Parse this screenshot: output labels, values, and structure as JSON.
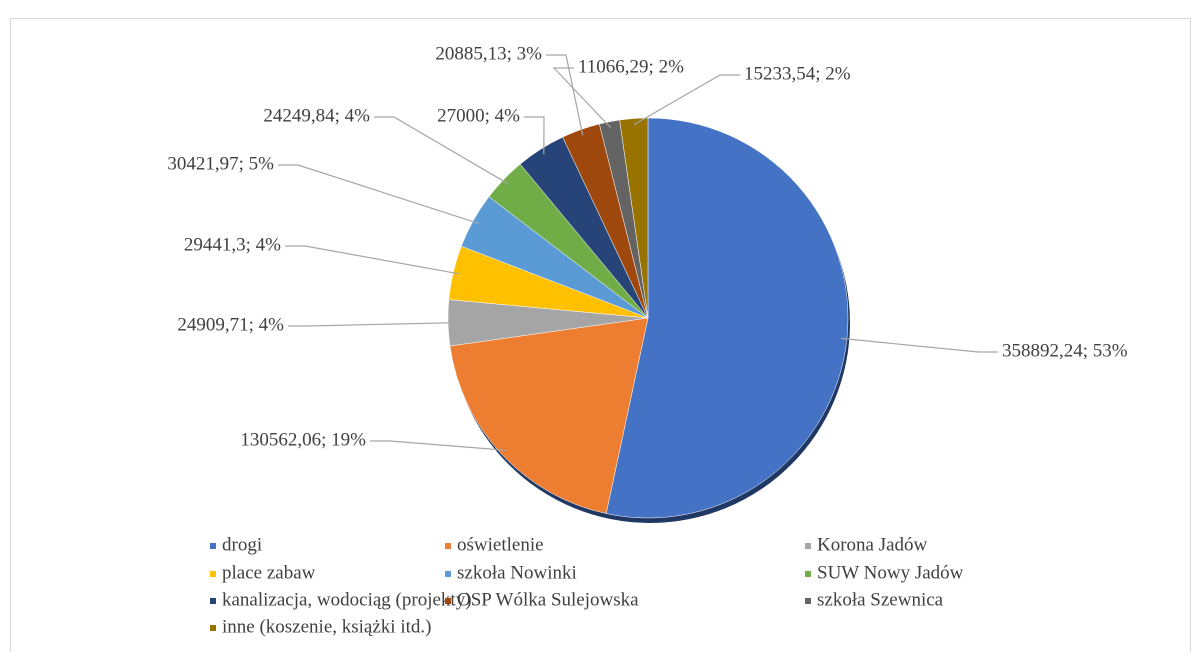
{
  "chart_data": {
    "type": "pie",
    "categories": [
      "drogi",
      "oświetlenie",
      "Korona Jadów",
      "place zabaw",
      "szkoła Nowinki",
      "SUW Nowy Jadów",
      "kanalizacja, wodociąg (projekty)",
      "OSP Wólka Sulejowska",
      "szkoła Szewnica",
      "inne (koszenie, książki itd.)"
    ],
    "values": [
      358892.24,
      130562.06,
      24909.71,
      29441.3,
      30421.97,
      24249.84,
      27000,
      20885.13,
      11066.29,
      15233.54
    ],
    "value_labels": [
      "358892,24; 53%",
      "130562,06; 19%",
      "24909,71; 4%",
      "29441,3; 4%",
      "30421,97; 5%",
      "24249,84; 4%",
      "27000; 4%",
      "20885,13; 3%",
      "11066,29; 2%",
      "15233,54; 2%"
    ],
    "colors": [
      "#4472c4",
      "#ed7d31",
      "#a5a5a5",
      "#ffc000",
      "#5b9bd5",
      "#70ad47",
      "#264478",
      "#9e480e",
      "#636363",
      "#997300"
    ],
    "legend": "bottom"
  }
}
